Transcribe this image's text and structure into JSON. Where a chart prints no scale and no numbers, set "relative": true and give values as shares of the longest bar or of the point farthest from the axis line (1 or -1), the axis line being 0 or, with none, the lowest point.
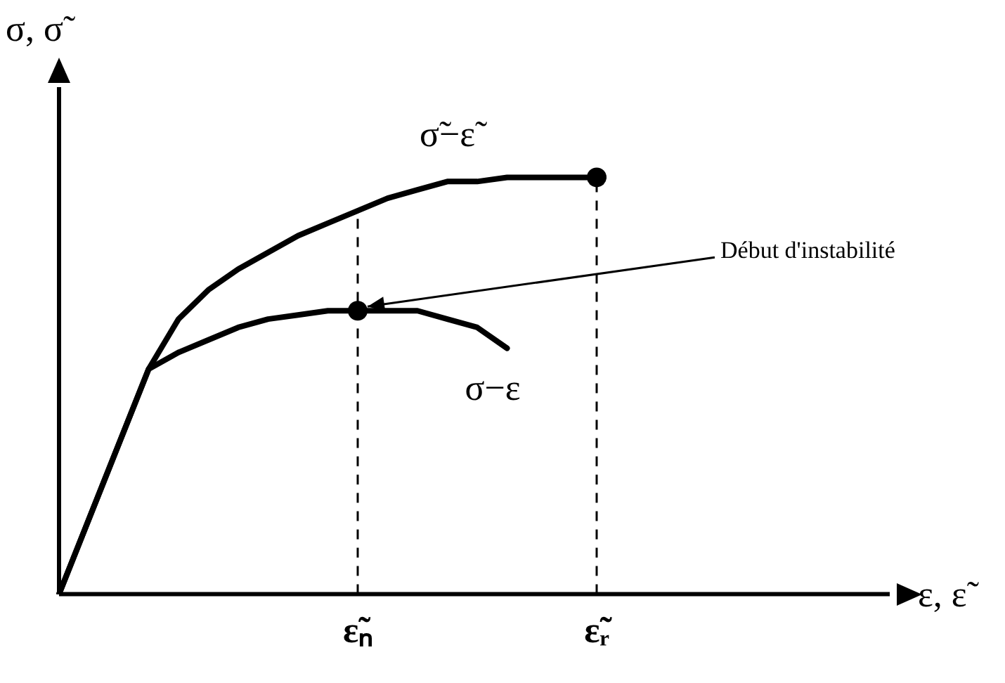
{
  "chart_data": {
    "type": "line",
    "relative": true,
    "ylabel": "σ, σ̃",
    "xlabel": "ε, ε̃",
    "categories": [
      null,
      null,
      null,
      null,
      null,
      null,
      null,
      null,
      null,
      null,
      "ε̃ₙ",
      null,
      null,
      null,
      null,
      null,
      null,
      null,
      "ε̃ᵣ",
      null,
      null,
      null,
      null,
      null,
      null,
      null,
      null,
      null,
      null
    ],
    "series": [
      {
        "name": "σ̃−ε̃",
        "color": "#000000",
        "values": [
          0,
          0.18,
          0.36,
          0.54,
          0.66,
          0.73,
          0.78,
          0.82,
          0.86,
          0.89,
          0.92,
          0.95,
          0.97,
          0.99,
          0.99,
          1,
          1,
          1,
          1,
          null,
          null,
          null,
          null,
          null,
          null,
          null,
          null,
          null,
          null
        ]
      },
      {
        "name": "σ−ε",
        "color": "#000000",
        "values": [
          0,
          0.18,
          0.36,
          0.54,
          0.58,
          0.61,
          0.64,
          0.66,
          0.67,
          0.68,
          0.68,
          0.68,
          0.68,
          0.66,
          0.64,
          0.59,
          null,
          null,
          null,
          null,
          null,
          null,
          null,
          null,
          null,
          null,
          null,
          null,
          null
        ]
      },
      {
        "type": "scatter",
        "color": "#000000",
        "marker": "circle",
        "x": [
          "ε̃ₙ",
          "ε̃ᵣ"
        ],
        "values": [
          0.68,
          1
        ]
      }
    ],
    "ref_lines": [
      {
        "axis": "x",
        "value": "ε̃ₙ",
        "line_style": "dashed"
      },
      {
        "axis": "x",
        "value": "ε̃ᵣ",
        "line_style": "dashed"
      }
    ],
    "annotations": [
      {
        "text": "Début d'instabilité",
        "x": "ε̃ₙ",
        "y": 0.68
      }
    ],
    "marker": "none",
    "line_style": "solid",
    "grid": false,
    "legend": false
  }
}
